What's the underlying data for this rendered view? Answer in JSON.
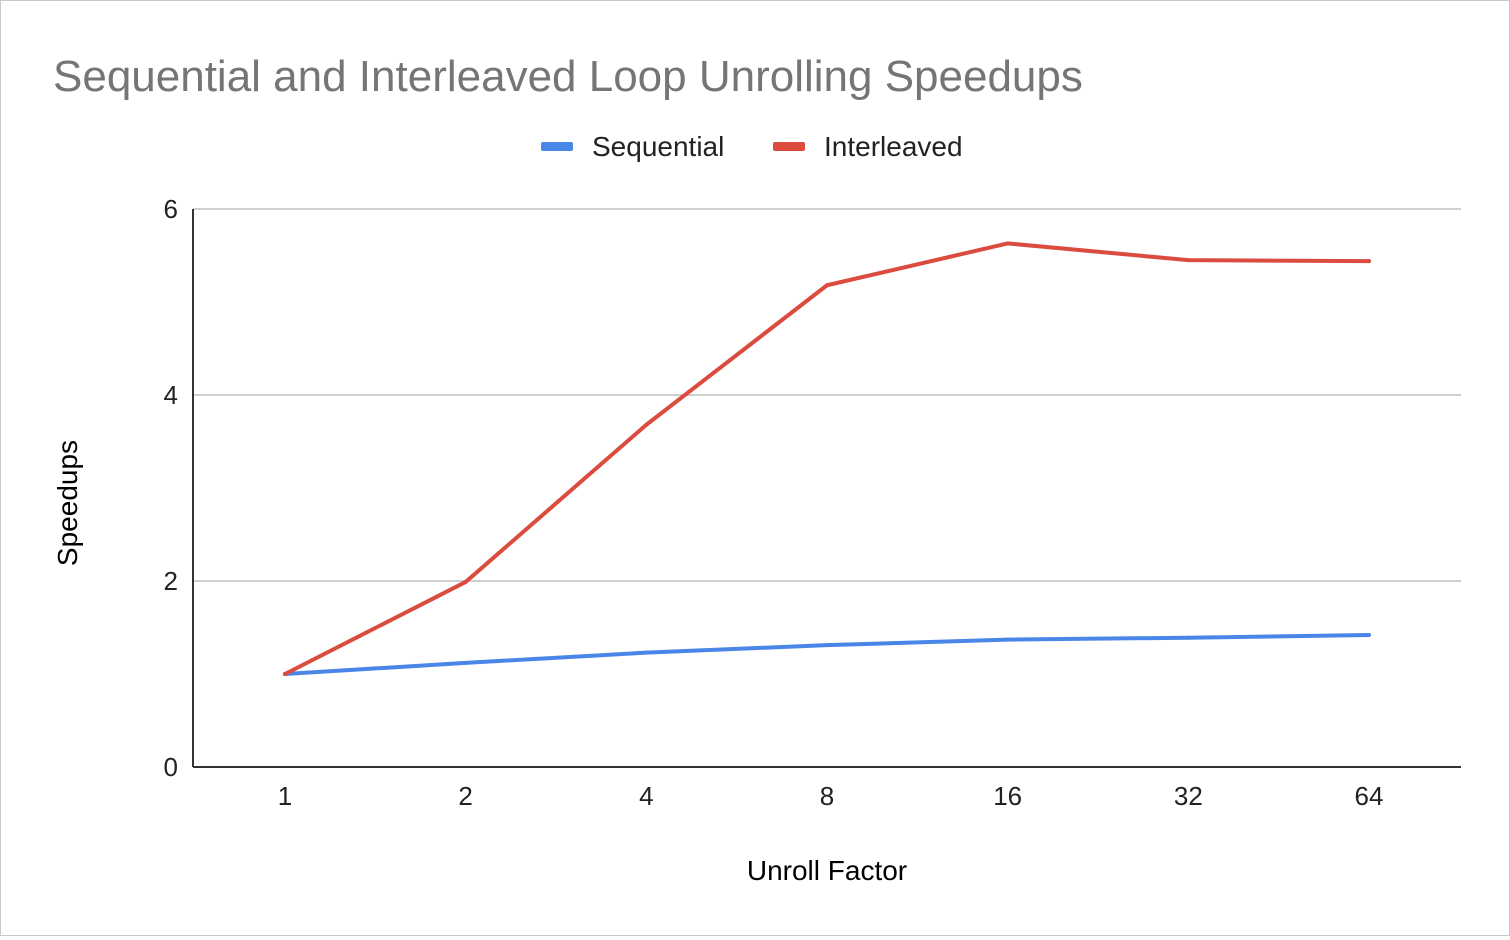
{
  "chart_data": {
    "type": "line",
    "title": "Sequential and Interleaved Loop Unrolling Speedups",
    "xlabel": "Unroll Factor",
    "ylabel": "Speedups",
    "categories": [
      "1",
      "2",
      "4",
      "8",
      "16",
      "32",
      "64"
    ],
    "ylim": [
      0,
      6
    ],
    "yticks": [
      "0",
      "2",
      "4",
      "6"
    ],
    "grid": true,
    "legend_position": "top",
    "series": [
      {
        "name": "Sequential",
        "color": "#4a86e8",
        "values": [
          1.0,
          1.12,
          1.23,
          1.31,
          1.37,
          1.39,
          1.42
        ]
      },
      {
        "name": "Interleaved",
        "color": "#db4b3e",
        "values": [
          1.0,
          1.99,
          3.68,
          5.18,
          5.63,
          5.45,
          5.44
        ]
      }
    ]
  }
}
